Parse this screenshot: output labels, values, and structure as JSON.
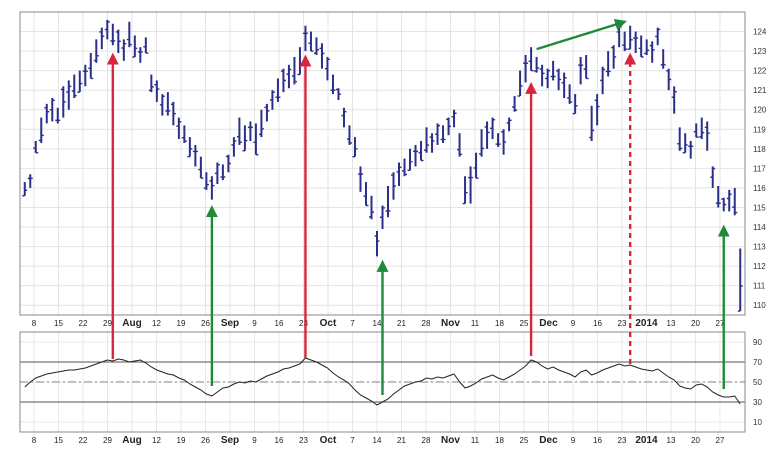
{
  "chart_data": [
    {
      "type": "ohlc",
      "panel": "price",
      "y_ticks": [
        110,
        111,
        112,
        113,
        114,
        115,
        116,
        117,
        118,
        119,
        120,
        121,
        122,
        123,
        124
      ],
      "ylim": [
        109.5,
        125
      ],
      "grid": true,
      "x_ticks": [
        {
          "label": "8",
          "bold": false
        },
        {
          "label": "15",
          "bold": false
        },
        {
          "label": "22",
          "bold": false
        },
        {
          "label": "29",
          "bold": false
        },
        {
          "label": "Aug",
          "bold": true
        },
        {
          "label": "12",
          "bold": false
        },
        {
          "label": "19",
          "bold": false
        },
        {
          "label": "26",
          "bold": false
        },
        {
          "label": "Sep",
          "bold": true
        },
        {
          "label": "9",
          "bold": false
        },
        {
          "label": "16",
          "bold": false
        },
        {
          "label": "23",
          "bold": false
        },
        {
          "label": "Oct",
          "bold": true
        },
        {
          "label": "7",
          "bold": false
        },
        {
          "label": "14",
          "bold": false
        },
        {
          "label": "21",
          "bold": false
        },
        {
          "label": "28",
          "bold": false
        },
        {
          "label": "Nov",
          "bold": true
        },
        {
          "label": "11",
          "bold": false
        },
        {
          "label": "18",
          "bold": false
        },
        {
          "label": "25",
          "bold": false
        },
        {
          "label": "Dec",
          "bold": true
        },
        {
          "label": "9",
          "bold": false
        },
        {
          "label": "16",
          "bold": false
        },
        {
          "label": "23",
          "bold": false
        },
        {
          "label": "2014",
          "bold": true
        },
        {
          "label": "13",
          "bold": false
        },
        {
          "label": "20",
          "bold": false
        },
        {
          "label": "27",
          "bold": false
        }
      ],
      "series_color": "#2b2f8a",
      "bars": [
        [
          0,
          116.3,
          115.6
        ],
        [
          1,
          116.7,
          116.0
        ],
        [
          2,
          118.4,
          117.8
        ],
        [
          3,
          119.6,
          118.3
        ],
        [
          4,
          120.3,
          119.3
        ],
        [
          5,
          120.6,
          119.4
        ],
        [
          6,
          120.1,
          119.3
        ],
        [
          7,
          121.2,
          119.6
        ],
        [
          8,
          121.5,
          120.0
        ],
        [
          9,
          121.8,
          120.6
        ],
        [
          10,
          122.0,
          120.9
        ],
        [
          11,
          122.3,
          121.2
        ],
        [
          12,
          122.9,
          121.6
        ],
        [
          13,
          123.6,
          122.4
        ],
        [
          14,
          124.2,
          123.1
        ],
        [
          15,
          124.6,
          123.6
        ],
        [
          16,
          124.4,
          123.3
        ],
        [
          17,
          124.1,
          122.9
        ],
        [
          18,
          123.6,
          122.5
        ],
        [
          19,
          124.5,
          123.2
        ],
        [
          20,
          123.8,
          122.7
        ],
        [
          21,
          123.2,
          122.4
        ],
        [
          22,
          123.7,
          122.9
        ],
        [
          23,
          121.8,
          120.9
        ],
        [
          24,
          121.5,
          120.4
        ],
        [
          25,
          120.8,
          119.7
        ],
        [
          26,
          120.9,
          119.7
        ],
        [
          27,
          120.4,
          119.2
        ],
        [
          28,
          119.6,
          118.5
        ],
        [
          29,
          119.2,
          118.3
        ],
        [
          30,
          118.6,
          117.6
        ],
        [
          31,
          118.2,
          117.1
        ],
        [
          32,
          117.6,
          116.5
        ],
        [
          33,
          116.8,
          115.9
        ],
        [
          34,
          116.6,
          115.4
        ],
        [
          35,
          117.3,
          116.2
        ],
        [
          36,
          117.2,
          116.4
        ],
        [
          37,
          117.7,
          116.8
        ],
        [
          38,
          118.6,
          117.6
        ],
        [
          39,
          119.6,
          118.2
        ],
        [
          40,
          119.2,
          117.9
        ],
        [
          41,
          119.4,
          118.4
        ],
        [
          42,
          119.3,
          117.7
        ],
        [
          43,
          120.0,
          118.6
        ],
        [
          44,
          120.3,
          119.4
        ],
        [
          45,
          121.0,
          120.0
        ],
        [
          46,
          121.6,
          120.4
        ],
        [
          47,
          122.1,
          120.9
        ],
        [
          48,
          122.3,
          121.1
        ],
        [
          49,
          122.7,
          121.3
        ],
        [
          50,
          123.2,
          121.8
        ],
        [
          51,
          124.3,
          123.0
        ],
        [
          52,
          124.0,
          123.0
        ],
        [
          53,
          123.7,
          122.8
        ],
        [
          54,
          123.4,
          122.1
        ],
        [
          55,
          122.7,
          121.5
        ],
        [
          56,
          121.8,
          120.8
        ],
        [
          57,
          121.1,
          120.5
        ],
        [
          58,
          120.1,
          119.1
        ],
        [
          59,
          119.2,
          118.2
        ],
        [
          60,
          118.6,
          117.6
        ],
        [
          61,
          117.1,
          115.8
        ],
        [
          62,
          116.3,
          115.1
        ],
        [
          63,
          115.6,
          114.4
        ],
        [
          64,
          113.8,
          112.5
        ],
        [
          65,
          115.1,
          113.9
        ],
        [
          66,
          116.1,
          114.5
        ],
        [
          67,
          116.8,
          115.4
        ],
        [
          68,
          117.3,
          116.1
        ],
        [
          69,
          117.5,
          116.6
        ],
        [
          70,
          118.0,
          116.9
        ],
        [
          71,
          118.2,
          117.1
        ],
        [
          72,
          118.4,
          117.4
        ],
        [
          73,
          119.1,
          117.8
        ],
        [
          74,
          118.8,
          117.8
        ],
        [
          75,
          119.3,
          118.2
        ],
        [
          76,
          119.2,
          118.3
        ],
        [
          77,
          119.6,
          118.7
        ],
        [
          78,
          120.0,
          119.1
        ],
        [
          79,
          118.8,
          117.6
        ],
        [
          80,
          116.6,
          115.2
        ],
        [
          81,
          117.1,
          115.2
        ],
        [
          82,
          117.8,
          116.5
        ],
        [
          83,
          119.0,
          117.6
        ],
        [
          84,
          119.4,
          118.0
        ],
        [
          85,
          119.6,
          118.5
        ],
        [
          86,
          118.8,
          118.1
        ],
        [
          87,
          119.0,
          117.7
        ],
        [
          88,
          119.6,
          118.9
        ],
        [
          89,
          120.7,
          119.9
        ],
        [
          90,
          122.0,
          120.7
        ],
        [
          91,
          122.8,
          121.4
        ],
        [
          92,
          123.2,
          122.0
        ],
        [
          93,
          122.7,
          121.9
        ],
        [
          94,
          122.3,
          121.2
        ],
        [
          95,
          122.1,
          121.1
        ],
        [
          96,
          122.5,
          121.5
        ],
        [
          97,
          122.1,
          121.0
        ],
        [
          98,
          121.9,
          120.6
        ],
        [
          99,
          121.3,
          120.3
        ],
        [
          100,
          120.8,
          119.8
        ],
        [
          101,
          122.7,
          121.3
        ],
        [
          102,
          122.8,
          121.6
        ],
        [
          103,
          120.2,
          118.4
        ],
        [
          104,
          120.8,
          119.2
        ],
        [
          105,
          122.2,
          120.8
        ],
        [
          106,
          123.0,
          121.7
        ],
        [
          107,
          123.3,
          122.1
        ],
        [
          108,
          124.5,
          123.2
        ],
        [
          109,
          124.0,
          123.0
        ],
        [
          110,
          124.3,
          123.1
        ],
        [
          111,
          124.0,
          122.9
        ],
        [
          112,
          123.8,
          122.7
        ],
        [
          113,
          123.6,
          122.8
        ],
        [
          114,
          123.5,
          122.4
        ],
        [
          115,
          124.2,
          123.3
        ],
        [
          116,
          123.1,
          122.1
        ],
        [
          117,
          122.1,
          121.0
        ],
        [
          118,
          121.2,
          119.8
        ],
        [
          119,
          119.1,
          117.9
        ],
        [
          120,
          118.8,
          117.8
        ],
        [
          121,
          118.4,
          117.5
        ],
        [
          122,
          119.3,
          118.6
        ],
        [
          123,
          119.6,
          118.5
        ],
        [
          124,
          119.4,
          117.9
        ],
        [
          125,
          117.1,
          116.0
        ],
        [
          126,
          116.1,
          115.0
        ],
        [
          127,
          115.5,
          114.8
        ],
        [
          128,
          115.9,
          114.8
        ],
        [
          129,
          116.0,
          114.6
        ],
        [
          130,
          112.9,
          109.7
        ]
      ],
      "annotations": [
        {
          "type": "arrow",
          "color": "#d7263d",
          "style": "solid",
          "from": {
            "panel": "indicator",
            "x": 16,
            "y": 73
          },
          "to": {
            "panel": "price",
            "x": 16,
            "y": 122.8
          }
        },
        {
          "type": "arrow",
          "color": "#1e8a3a",
          "style": "solid",
          "from": {
            "panel": "indicator",
            "x": 34,
            "y": 46
          },
          "to": {
            "panel": "price",
            "x": 34,
            "y": 115.0
          }
        },
        {
          "type": "arrow",
          "color": "#d7263d",
          "style": "solid",
          "from": {
            "panel": "indicator",
            "x": 51,
            "y": 74
          },
          "to": {
            "panel": "price",
            "x": 51,
            "y": 122.7
          }
        },
        {
          "type": "arrow",
          "color": "#1e8a3a",
          "style": "solid",
          "from": {
            "panel": "indicator",
            "x": 65,
            "y": 37
          },
          "to": {
            "panel": "price",
            "x": 65,
            "y": 112.2
          }
        },
        {
          "type": "arrow",
          "color": "#d7263d",
          "style": "solid",
          "from": {
            "panel": "indicator",
            "x": 92,
            "y": 76
          },
          "to": {
            "panel": "price",
            "x": 92,
            "y": 121.3
          }
        },
        {
          "type": "arrow",
          "color": "#1e8a3a",
          "style": "solid",
          "from": {
            "panel": "price",
            "x": 93,
            "y": 123.1
          },
          "to": {
            "panel": "price",
            "x": 109,
            "y": 124.5
          }
        },
        {
          "type": "arrow",
          "color": "#d7263d",
          "style": "dashed",
          "from": {
            "panel": "indicator",
            "x": 110,
            "y": 68
          },
          "to": {
            "panel": "price",
            "x": 110,
            "y": 122.8
          }
        },
        {
          "type": "arrow",
          "color": "#1e8a3a",
          "style": "solid",
          "from": {
            "panel": "indicator",
            "x": 127,
            "y": 43
          },
          "to": {
            "panel": "price",
            "x": 127,
            "y": 114.0
          }
        }
      ]
    },
    {
      "type": "line",
      "panel": "indicator",
      "y_ticks": [
        10,
        30,
        50,
        70,
        90
      ],
      "ylim": [
        0,
        100
      ],
      "grid": true,
      "reference_lines": [
        {
          "value": 70,
          "style": "solid"
        },
        {
          "value": 50,
          "style": "dashdot"
        },
        {
          "value": 30,
          "style": "solid"
        }
      ],
      "x_ticks": [
        {
          "label": "8",
          "bold": false
        },
        {
          "label": "15",
          "bold": false
        },
        {
          "label": "22",
          "bold": false
        },
        {
          "label": "29",
          "bold": false
        },
        {
          "label": "Aug",
          "bold": true
        },
        {
          "label": "12",
          "bold": false
        },
        {
          "label": "19",
          "bold": false
        },
        {
          "label": "26",
          "bold": false
        },
        {
          "label": "Sep",
          "bold": true
        },
        {
          "label": "9",
          "bold": false
        },
        {
          "label": "16",
          "bold": false
        },
        {
          "label": "23",
          "bold": false
        },
        {
          "label": "Oct",
          "bold": true
        },
        {
          "label": "7",
          "bold": false
        },
        {
          "label": "14",
          "bold": false
        },
        {
          "label": "21",
          "bold": false
        },
        {
          "label": "28",
          "bold": false
        },
        {
          "label": "Nov",
          "bold": true
        },
        {
          "label": "11",
          "bold": false
        },
        {
          "label": "18",
          "bold": false
        },
        {
          "label": "25",
          "bold": false
        },
        {
          "label": "Dec",
          "bold": true
        },
        {
          "label": "9",
          "bold": false
        },
        {
          "label": "16",
          "bold": false
        },
        {
          "label": "23",
          "bold": false
        },
        {
          "label": "2014",
          "bold": true
        },
        {
          "label": "13",
          "bold": false
        },
        {
          "label": "20",
          "bold": false
        },
        {
          "label": "27",
          "bold": false
        }
      ],
      "series_color": "#222222",
      "oversold_fill_color": "#b07a7a",
      "values": [
        45,
        50,
        54,
        56,
        58,
        59,
        60,
        61,
        62,
        62,
        63,
        64,
        66,
        68,
        70,
        72,
        71,
        73,
        72,
        70,
        71,
        72,
        69,
        65,
        62,
        60,
        58,
        57,
        54,
        52,
        48,
        45,
        42,
        38,
        36,
        40,
        44,
        45,
        48,
        50,
        49,
        51,
        50,
        53,
        56,
        58,
        60,
        63,
        64,
        66,
        68,
        74,
        72,
        70,
        67,
        64,
        59,
        55,
        52,
        48,
        42,
        37,
        34,
        31,
        27,
        30,
        33,
        38,
        42,
        46,
        48,
        50,
        51,
        54,
        53,
        55,
        54,
        56,
        58,
        50,
        44,
        46,
        49,
        53,
        55,
        57,
        54,
        52,
        55,
        58,
        62,
        66,
        72,
        70,
        66,
        63,
        65,
        62,
        60,
        58,
        55,
        60,
        62,
        57,
        59,
        62,
        64,
        66,
        68,
        66,
        67,
        65,
        63,
        62,
        61,
        63,
        59,
        55,
        52,
        46,
        44,
        43,
        47,
        48,
        45,
        40,
        37,
        35,
        35,
        36,
        28
      ]
    }
  ]
}
